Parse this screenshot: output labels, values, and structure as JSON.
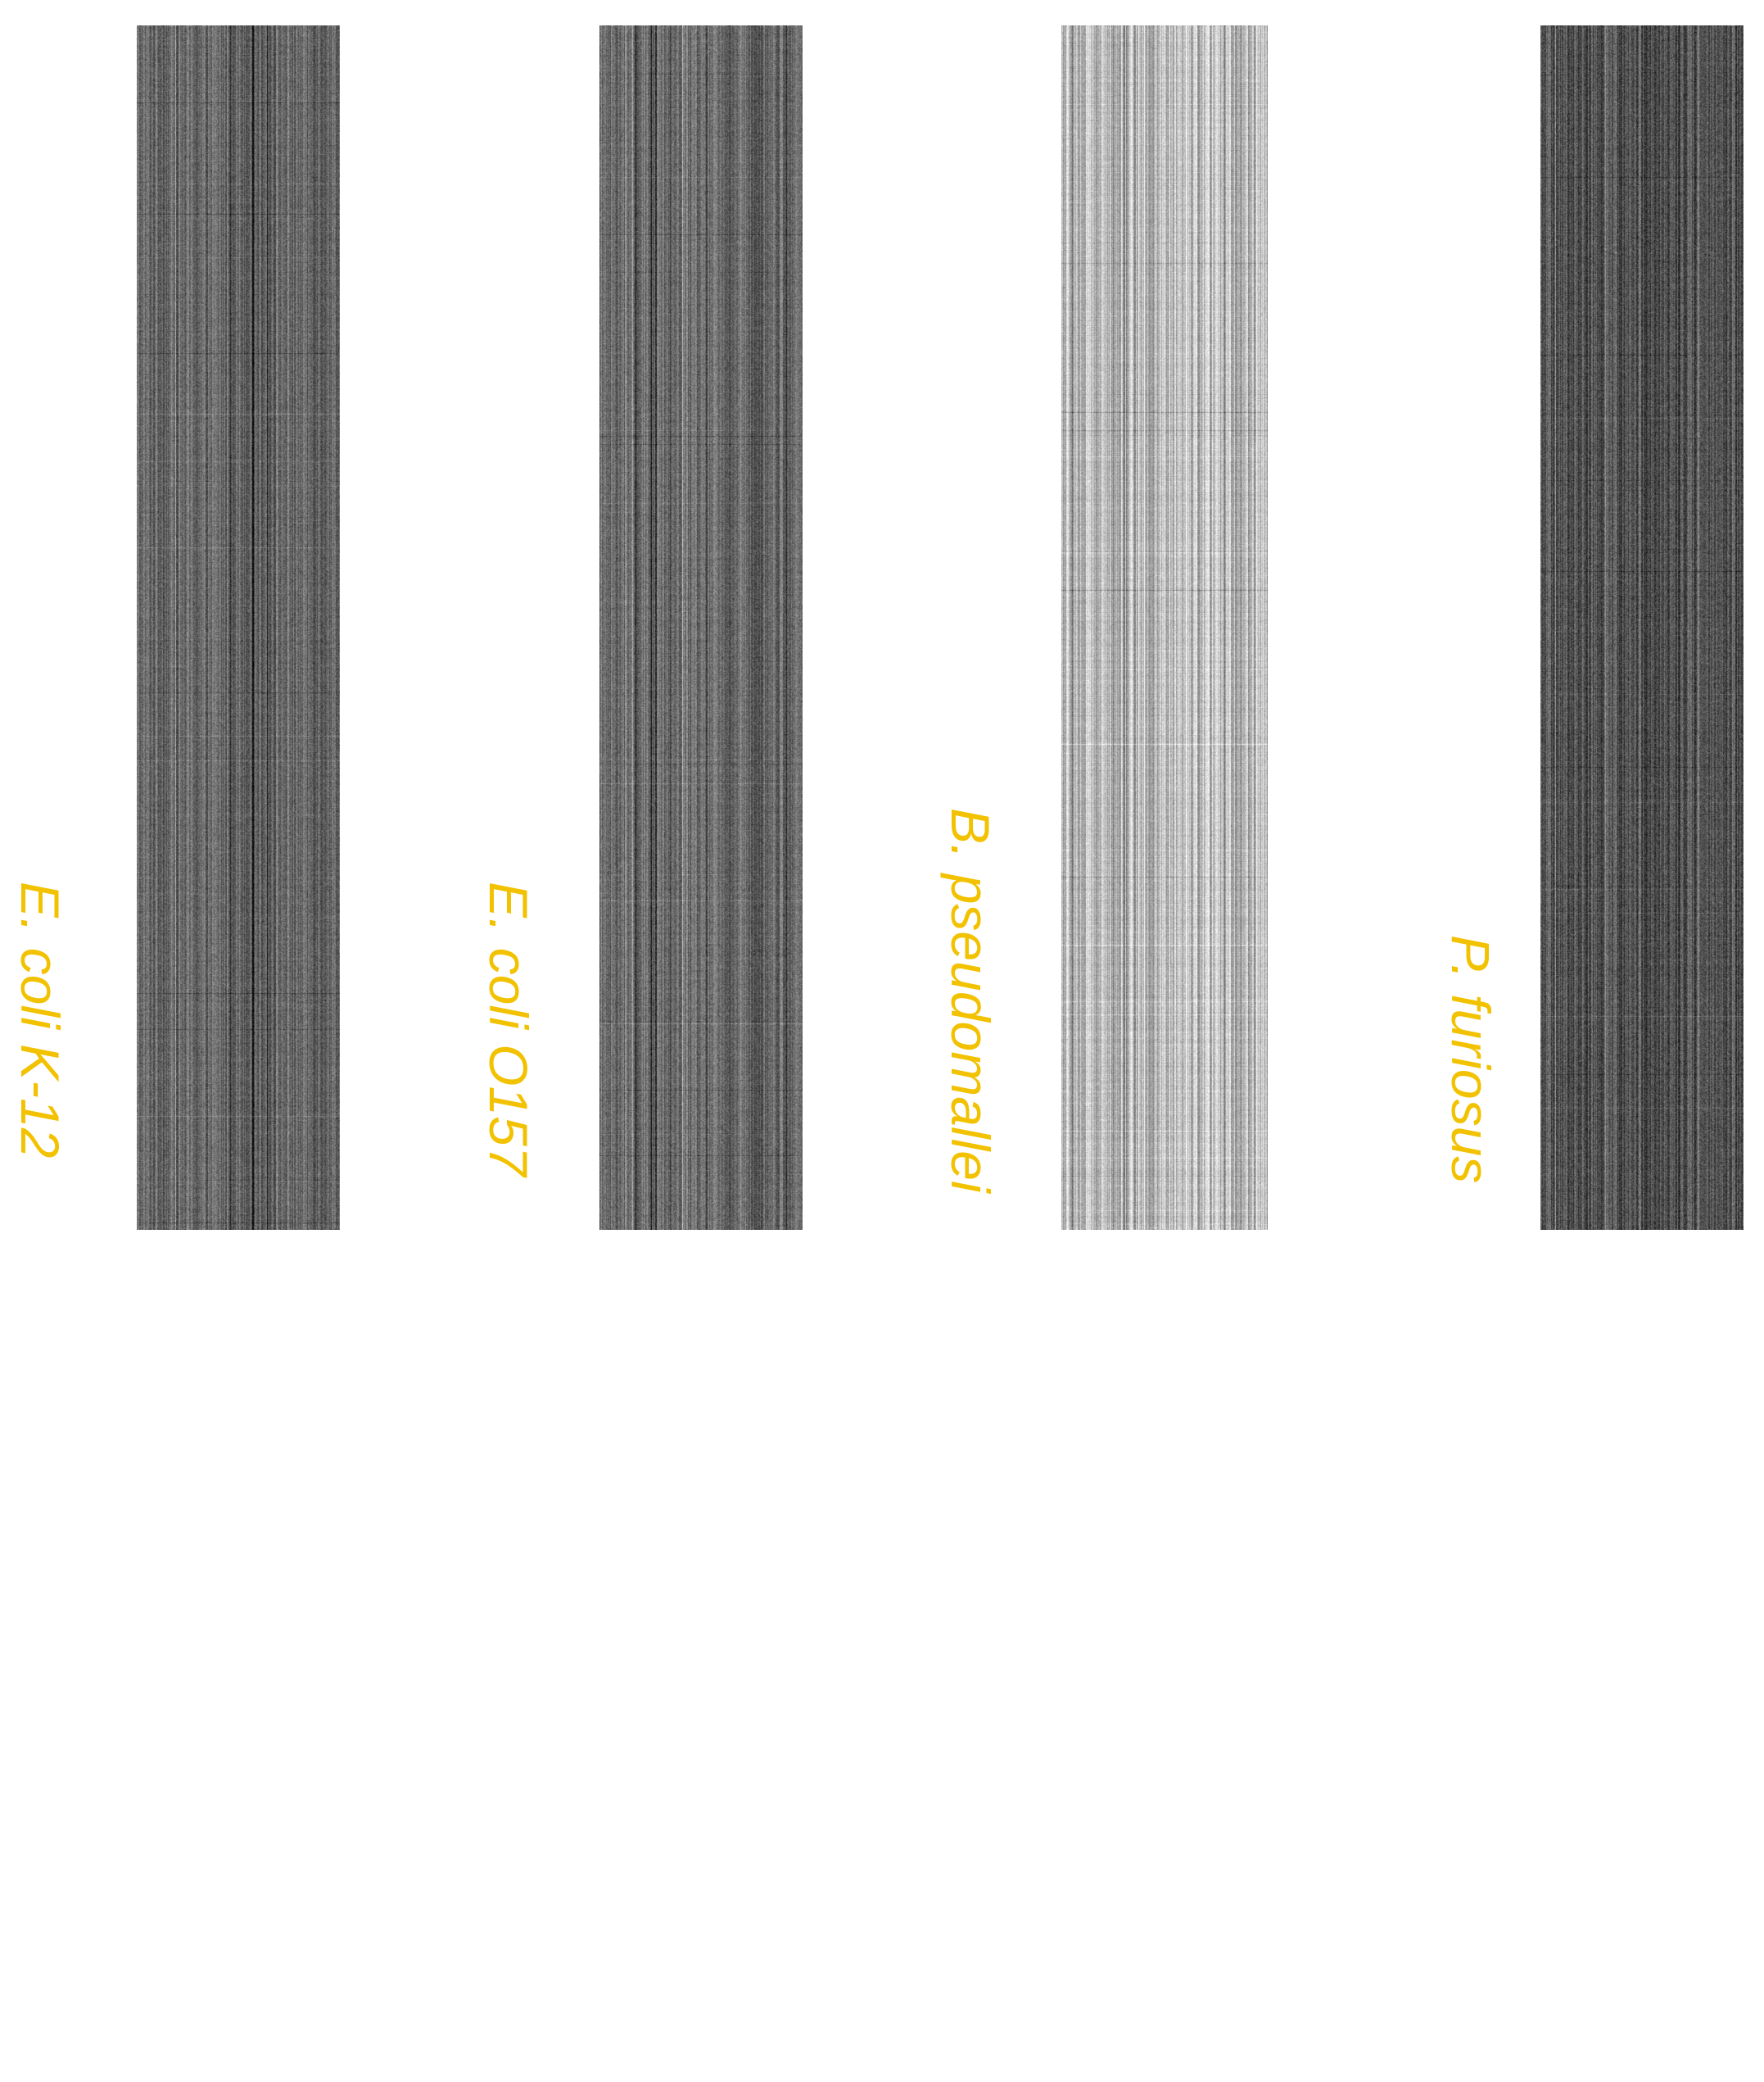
{
  "label_color": "#f2c200",
  "panels": [
    {
      "label": "E. coli K-12",
      "tone": "dark"
    },
    {
      "label": "E. coli O157",
      "tone": "dark"
    },
    {
      "label": "B. pseudomallei",
      "tone": "light"
    },
    {
      "label": "P. furiosus",
      "tone": "darker"
    }
  ]
}
